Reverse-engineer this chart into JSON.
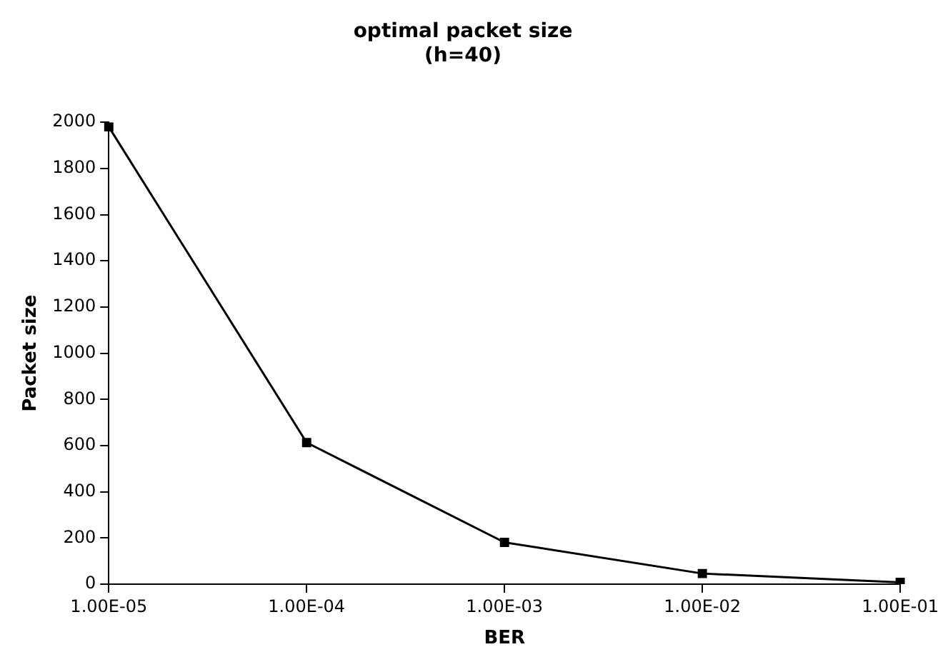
{
  "chart_data": {
    "type": "line",
    "title": "optimal packet size\n(h=40)",
    "xlabel": "BER",
    "ylabel": "Packet size",
    "categories": [
      "1.00E-05",
      "1.00E-04",
      "1.00E-03",
      "1.00E-02",
      "1.00E-01"
    ],
    "series": [
      {
        "color": "#000000",
        "values": [
          1980,
          613,
          181,
          46,
          8
        ]
      }
    ],
    "ylim": [
      0,
      2000
    ],
    "yticks": [
      0,
      200,
      400,
      600,
      800,
      1000,
      1200,
      1400,
      1600,
      1800,
      2000
    ],
    "grid": false,
    "legend": false,
    "marker": "square",
    "line_style": "solid"
  }
}
